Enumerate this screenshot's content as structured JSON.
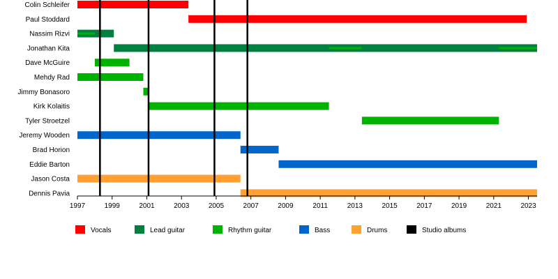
{
  "chart_data": {
    "type": "timeline",
    "title": "",
    "xlabel": "",
    "ylabel": "",
    "xlim": [
      1997,
      2023.5
    ],
    "x_ticks": [
      "1997",
      "1999",
      "2001",
      "2003",
      "2005",
      "2007",
      "2009",
      "2011",
      "2013",
      "2015",
      "2017",
      "2019",
      "2021",
      "2023"
    ],
    "grid": false,
    "legend_position": "bottom",
    "roles": [
      {
        "key": "vocals",
        "label": "Vocals",
        "color": "#ff0000"
      },
      {
        "key": "lead",
        "label": "Lead guitar",
        "color": "#008040"
      },
      {
        "key": "rhythm",
        "label": "Rhythm guitar",
        "color": "#00b300"
      },
      {
        "key": "bass",
        "label": "Bass",
        "color": "#0066cc"
      },
      {
        "key": "drums",
        "label": "Drums",
        "color": "#ffa030"
      },
      {
        "key": "albums",
        "label": "Studio albums",
        "color": "#000000"
      }
    ],
    "members": [
      {
        "name": "Colin Schleifer",
        "bars": [
          {
            "role": "vocals",
            "start": 1997.0,
            "end": 2003.4
          }
        ]
      },
      {
        "name": "Paul Stoddard",
        "bars": [
          {
            "role": "vocals",
            "start": 2003.4,
            "end": 2022.9
          }
        ]
      },
      {
        "name": "Nassim Rizvi",
        "bars": [
          {
            "role": "lead",
            "start": 1997.0,
            "end": 1999.1
          }
        ],
        "accents": [
          {
            "role": "rhythm",
            "start": 1997.0,
            "end": 1998.0
          }
        ]
      },
      {
        "name": "Jonathan Kita",
        "bars": [
          {
            "role": "lead",
            "start": 1999.1,
            "end": 2023.5
          }
        ],
        "accents": [
          {
            "role": "rhythm",
            "start": 2011.5,
            "end": 2013.4
          },
          {
            "role": "rhythm",
            "start": 2021.3,
            "end": 2023.5
          }
        ]
      },
      {
        "name": "Dave McGuire",
        "bars": [
          {
            "role": "rhythm",
            "start": 1998.0,
            "end": 2000.0
          }
        ]
      },
      {
        "name": "Mehdy Rad",
        "bars": [
          {
            "role": "rhythm",
            "start": 1997.0,
            "end": 2000.8
          }
        ]
      },
      {
        "name": "Jimmy Bonasoro",
        "bars": [
          {
            "role": "rhythm",
            "start": 2000.8,
            "end": 2001.1
          }
        ]
      },
      {
        "name": "Kirk Kolaitis",
        "bars": [
          {
            "role": "rhythm",
            "start": 2001.1,
            "end": 2011.5
          }
        ]
      },
      {
        "name": "Tyler Stroetzel",
        "bars": [
          {
            "role": "rhythm",
            "start": 2013.4,
            "end": 2021.3
          }
        ]
      },
      {
        "name": "Jeremy Wooden",
        "bars": [
          {
            "role": "bass",
            "start": 1997.0,
            "end": 2006.4
          }
        ]
      },
      {
        "name": "Brad Horion",
        "bars": [
          {
            "role": "bass",
            "start": 2006.4,
            "end": 2008.6
          }
        ]
      },
      {
        "name": "Eddie Barton",
        "bars": [
          {
            "role": "bass",
            "start": 2008.6,
            "end": 2023.5
          }
        ]
      },
      {
        "name": "Jason Costa",
        "bars": [
          {
            "role": "drums",
            "start": 1997.0,
            "end": 2006.4
          }
        ]
      },
      {
        "name": "Dennis Pavia",
        "bars": [
          {
            "role": "drums",
            "start": 2006.4,
            "end": 2023.5
          }
        ]
      }
    ],
    "albums": [
      1998.3,
      2001.1,
      2004.9,
      2006.8
    ]
  }
}
